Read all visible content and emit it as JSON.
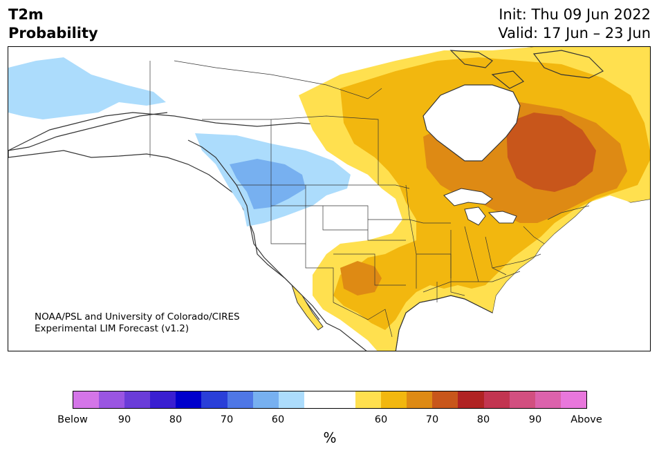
{
  "header": {
    "variable": "T2m",
    "product": "Probability",
    "init": "Init: Thu 09 Jun 2022",
    "valid": "Valid: 17 Jun – 23 Jun"
  },
  "credit": {
    "line1": "NOAA/PSL and University of Colorado/CIRES",
    "line2": "Experimental LIM Forecast (v1.2)"
  },
  "colorbar": {
    "unit": "%",
    "colors": [
      "#d475e8",
      "#9a55e2",
      "#6a3cd8",
      "#3a1fd1",
      "#0000cc",
      "#2a3fd8",
      "#4f77e6",
      "#77b0f0",
      "#acdcfc",
      "#ffffff",
      "#ffffff",
      "#ffe04f",
      "#f2b70f",
      "#de8a14",
      "#c8561b",
      "#b02323",
      "#c23551",
      "#d24f80",
      "#dc62ac",
      "#e877dc"
    ],
    "ticks": [
      "Below",
      "90",
      "80",
      "70",
      "60",
      "60",
      "70",
      "80",
      "90",
      "Above"
    ]
  },
  "map": {
    "region": "North America",
    "palette": {
      "light_blue": "#acdcfc",
      "mid_blue": "#77b0f0",
      "yellow": "#ffe04f",
      "gold": "#f2b70f",
      "orange": "#de8a14",
      "dark_orange": "#c8561b"
    }
  }
}
